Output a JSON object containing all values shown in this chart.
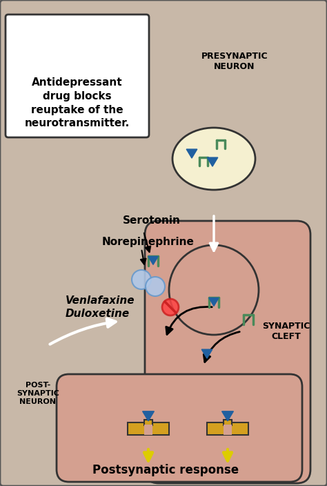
{
  "bg_color": "#c8b8a8",
  "border_color": "#555555",
  "presynaptic_color": "#d4a090",
  "postsynaptic_color": "#d4a090",
  "vesicle_color": "#f5f0d0",
  "receptor_color": "#4a8a5a",
  "neurotransmitter_color": "#2060a0",
  "drug_circle_color": "#b0c8e8",
  "textbox_bg": "#ffffff",
  "yellow_receptor_color": "#d4a020",
  "title_text": "Antidepressant\ndrug blocks\nreuptake of the\nneurotransmitter.",
  "presynaptic_label": "PRESYNAPTIC\nNEURON",
  "postsynaptic_label": "POST-\nSYNAPTIC\nNEURON",
  "synaptic_label": "SYNAPTIC\nCLEFT",
  "serotonin_label": "Serotonin",
  "norepinephrine_label": "Norepinephrine",
  "drug_label": "Venlafaxine\nDuloxetine",
  "postsynaptic_response_label": "Postsynaptic response"
}
